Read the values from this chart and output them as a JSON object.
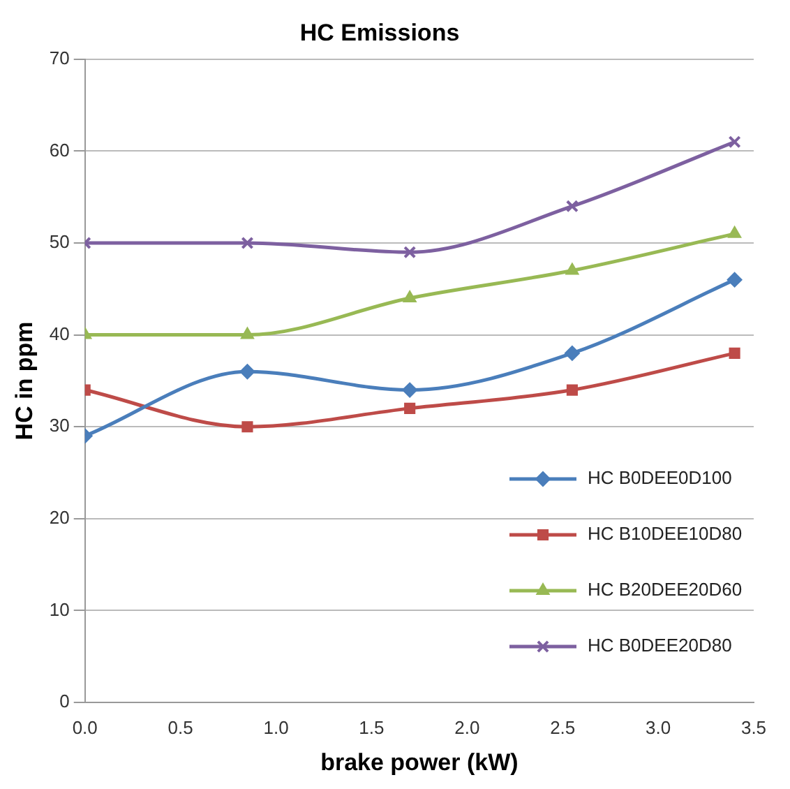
{
  "chart_data": {
    "type": "line",
    "title": "HC Emissions",
    "xlabel": "brake power (kW)",
    "ylabel": "HC in ppm",
    "x": [
      0,
      0.85,
      1.7,
      2.55,
      3.4
    ],
    "xlim": [
      0,
      3.5
    ],
    "xticks": [
      {
        "value": 0,
        "label": "0.0"
      },
      {
        "value": 0.5,
        "label": "0.5"
      },
      {
        "value": 1,
        "label": "1.0"
      },
      {
        "value": 1.5,
        "label": "1.5"
      },
      {
        "value": 2,
        "label": "2.0"
      },
      {
        "value": 2.5,
        "label": "2.5"
      },
      {
        "value": 3,
        "label": "3.0"
      },
      {
        "value": 3.5,
        "label": "3.5"
      }
    ],
    "ylim": [
      0,
      70
    ],
    "yticks": [
      0,
      10,
      20,
      30,
      40,
      50,
      60,
      70
    ],
    "grid": "y",
    "legend": "bottom right",
    "line_style": "solid",
    "series": [
      {
        "name": "HC B0DEE0D100",
        "color": "#4a7ebb",
        "marker": "diamond",
        "values": [
          29,
          36,
          34,
          38,
          46
        ]
      },
      {
        "name": "HC B10DEE10D80",
        "color": "#be4b48",
        "marker": "square",
        "values": [
          34,
          30,
          32,
          34,
          38
        ]
      },
      {
        "name": "HC B20DEE20D60",
        "color": "#98b954",
        "marker": "triangle",
        "values": [
          40,
          40,
          44,
          47,
          51
        ]
      },
      {
        "name": "HC B0DEE20D80",
        "color": "#7d60a0",
        "marker": "cross",
        "values": [
          50,
          50,
          49,
          54,
          61
        ]
      }
    ]
  }
}
